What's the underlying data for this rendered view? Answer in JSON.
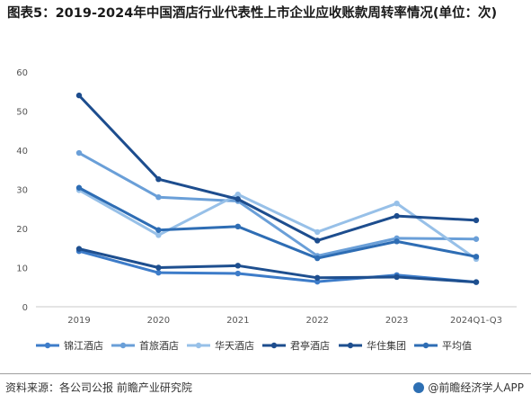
{
  "title": "图表5：2019-2024年中国酒店行业代表性上市企业应收账款周转率情况(单位：次)",
  "footer": {
    "source": "资料来源：各公司公报 前瞻产业研究院",
    "app": "@前瞻经济学人APP"
  },
  "chart_data": {
    "type": "line",
    "categories": [
      "2019",
      "2020",
      "2021",
      "2022",
      "2023",
      "2024Q1-Q3"
    ],
    "ylim": [
      0,
      60
    ],
    "yticks": [
      0,
      10,
      20,
      30,
      40,
      50,
      60
    ],
    "grid": false,
    "legend_position": "bottom",
    "series": [
      {
        "name": "锦江酒店",
        "color": "#3d7cc9",
        "values": [
          14.2,
          8.7,
          8.5,
          6.4,
          8.1,
          6.3
        ]
      },
      {
        "name": "首旅酒店",
        "color": "#6a9fd8",
        "values": [
          39.3,
          28.0,
          27.0,
          13.0,
          17.5,
          17.3
        ]
      },
      {
        "name": "华天酒店",
        "color": "#97c0e8",
        "values": [
          29.8,
          18.3,
          28.7,
          19.1,
          26.4,
          12.2
        ]
      },
      {
        "name": "君亭酒店",
        "color": "#1d4d8e",
        "values": [
          54.0,
          32.6,
          27.5,
          16.9,
          23.2,
          22.1
        ]
      },
      {
        "name": "华住集团",
        "color": "#1e4f8f",
        "values": [
          14.8,
          10.0,
          10.5,
          7.4,
          7.6,
          6.3
        ]
      },
      {
        "name": "平均值",
        "color": "#2e6db4",
        "values": [
          30.4,
          19.6,
          20.5,
          12.4,
          16.7,
          12.8
        ]
      }
    ]
  }
}
